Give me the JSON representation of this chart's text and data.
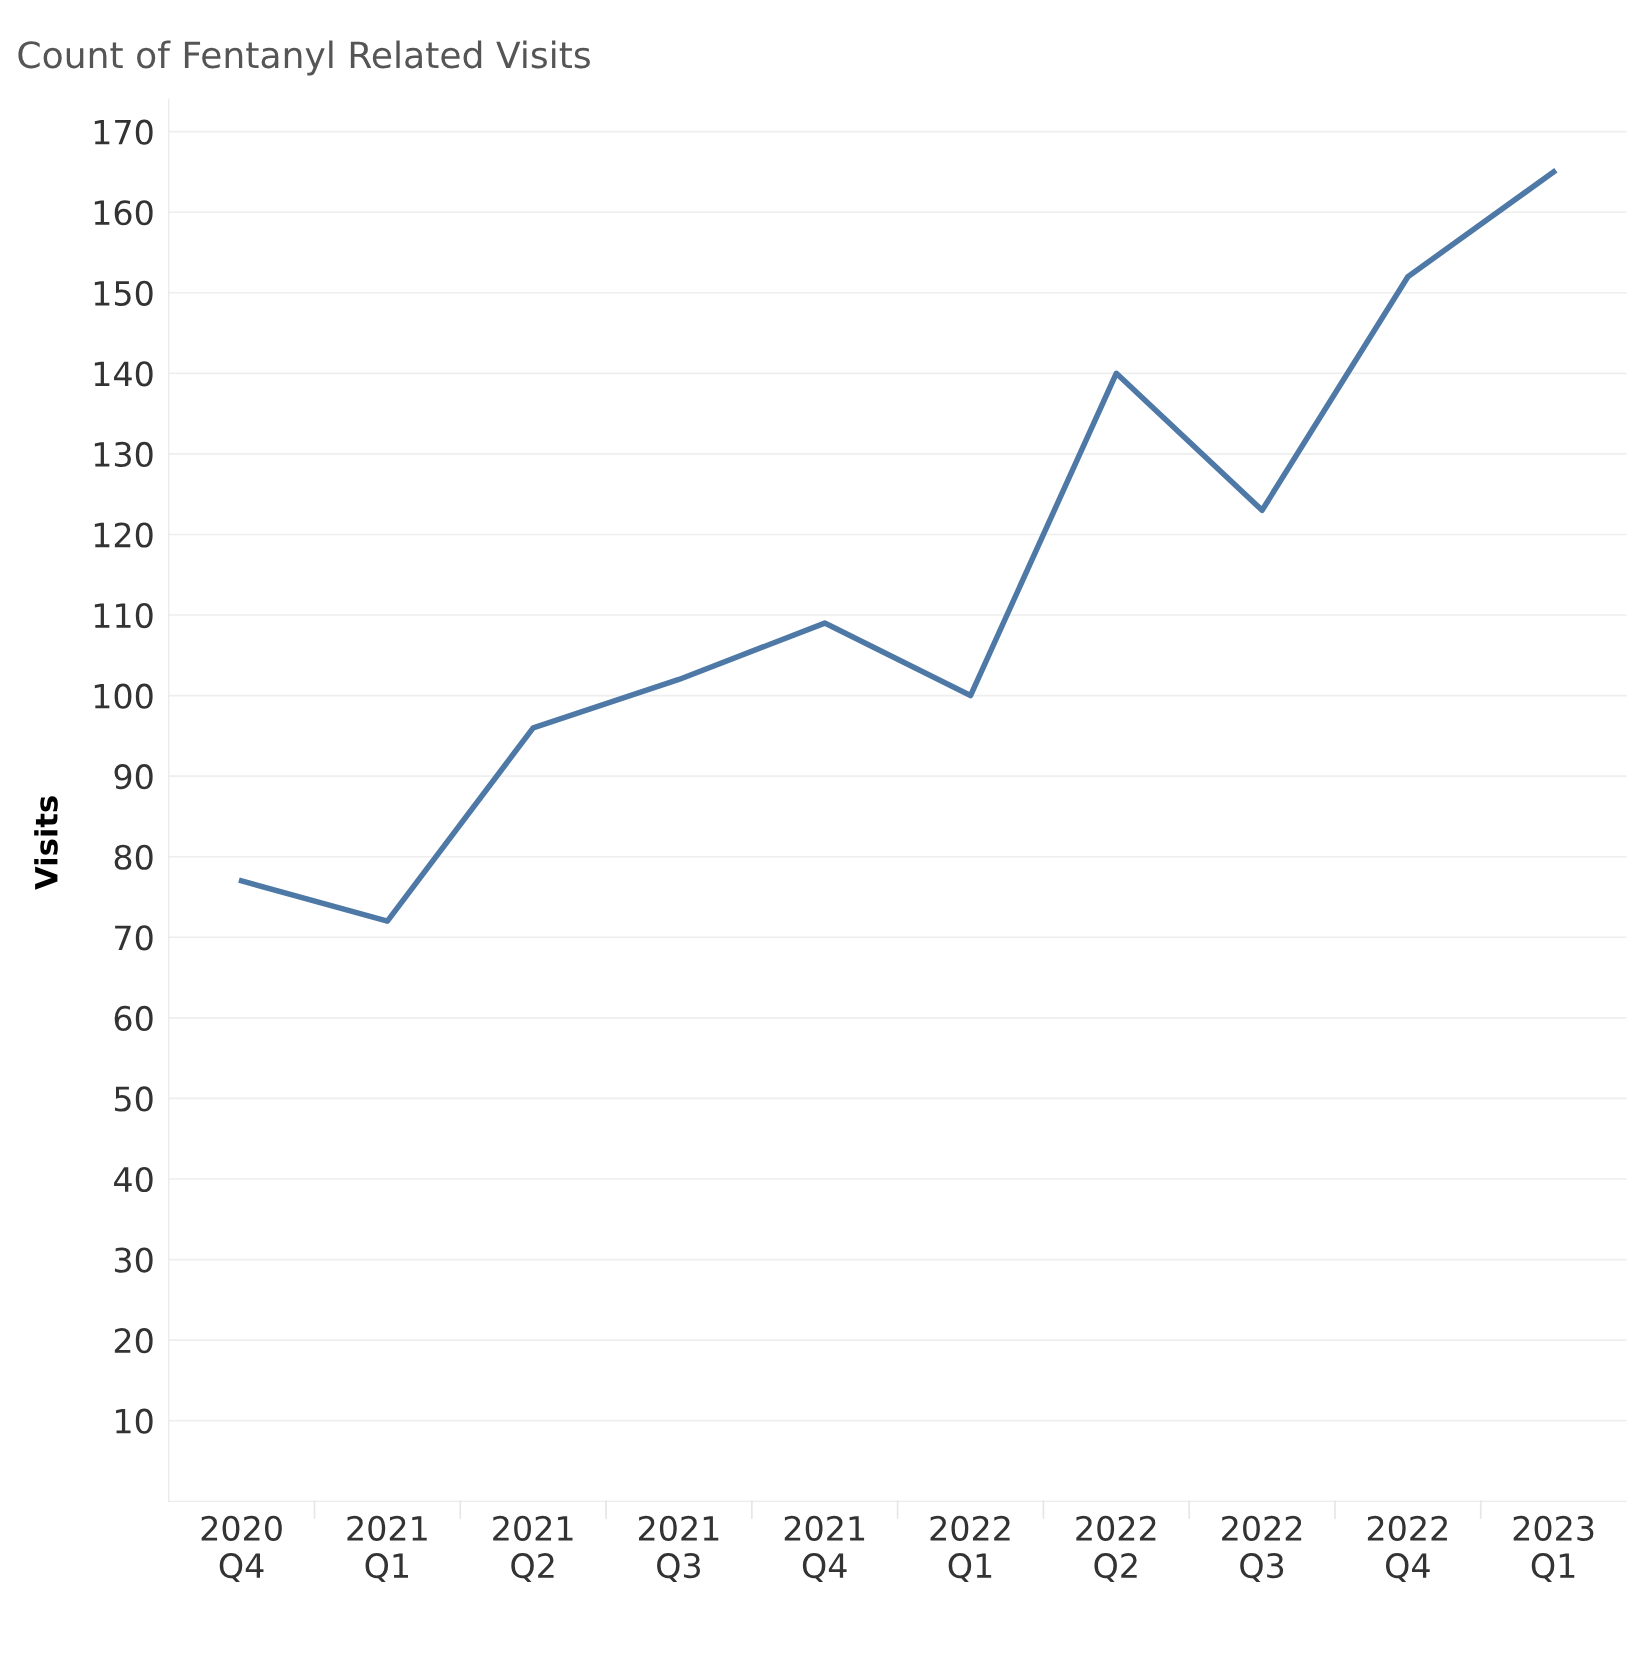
{
  "chart_data": {
    "type": "line",
    "title": "Count of Fentanyl Related Visits",
    "ylabel": "Visits",
    "categories": [
      "2020\nQ4",
      "2021\nQ1",
      "2021\nQ2",
      "2021\nQ3",
      "2021\nQ4",
      "2022\nQ1",
      "2022\nQ2",
      "2022\nQ3",
      "2022\nQ4",
      "2023\nQ1"
    ],
    "series": [
      {
        "color": "#4e79a7",
        "values": [
          77,
          72,
          96,
          102,
          109,
          100,
          140,
          123,
          152,
          165
        ]
      }
    ],
    "ylim": [
      0,
      174
    ],
    "yticks": [
      10,
      20,
      30,
      40,
      50,
      60,
      70,
      80,
      90,
      100,
      110,
      120,
      130,
      140,
      150,
      160,
      170
    ],
    "grid": "y",
    "marker": "none",
    "line_style": "solid",
    "legend": false
  }
}
